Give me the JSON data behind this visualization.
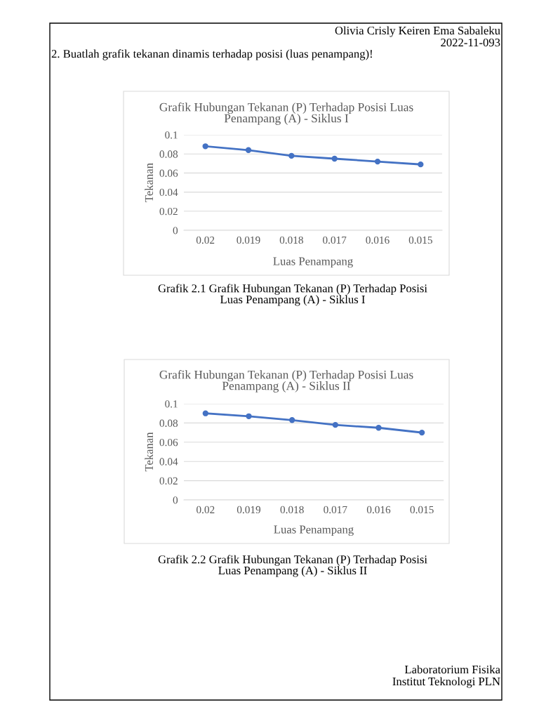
{
  "chart_data": [
    {
      "type": "line",
      "title": "Grafik Hubungan Tekanan (P) Terhadap Posisi Luas\nPenampang (A) - Siklus I",
      "xlabel": "Luas Penampang",
      "ylabel": "Tekanan",
      "categories": [
        "0.02",
        "0.019",
        "0.018",
        "0.017",
        "0.016",
        "0.015"
      ],
      "series": [
        {
          "color": "#4472c4",
          "values": [
            0.088,
            0.084,
            0.078,
            0.075,
            0.072,
            0.069
          ]
        }
      ],
      "ylim": [
        0,
        0.1
      ],
      "yticks": [
        0,
        0.02,
        0.04,
        0.06,
        0.08,
        0.1
      ],
      "grid": "y",
      "marker": "circle",
      "line_style": "solid",
      "annotations": [
        "Olivia Crisly Keiren Ema Sabaleku",
        "2022-11-093",
        "2. Buatlah grafik tekanan dinamis terhadap posisi (luas penampang)!",
        "Grafik 2.1 Grafik Hubungan Tekanan (P) Terhadap Posisi\nLuas Penampang (A) - Siklus I"
      ]
    },
    {
      "type": "line",
      "title": "Grafik Hubungan Tekanan (P) Terhadap Posisi Luas\nPenampang (A) - Siklus II",
      "xlabel": "Luas Penampang",
      "ylabel": "Tekanan",
      "categories": [
        "0.02",
        "0.019",
        "0.018",
        "0.017",
        "0.016",
        "0.015"
      ],
      "series": [
        {
          "color": "#4472c4",
          "values": [
            0.09,
            0.087,
            0.083,
            0.078,
            0.075,
            0.07
          ]
        }
      ],
      "ylim": [
        0,
        0.1
      ],
      "yticks": [
        0,
        0.02,
        0.04,
        0.06,
        0.08,
        0.1
      ],
      "grid": "y",
      "marker": "circle",
      "line_style": "solid",
      "annotations": [
        "Grafik 2.2 Grafik Hubungan Tekanan (P) Terhadap Posisi\nLuas Penampang (A) - Siklus II",
        "Laboratorium Fisika",
        "Institut Teknologi PLN"
      ]
    }
  ]
}
